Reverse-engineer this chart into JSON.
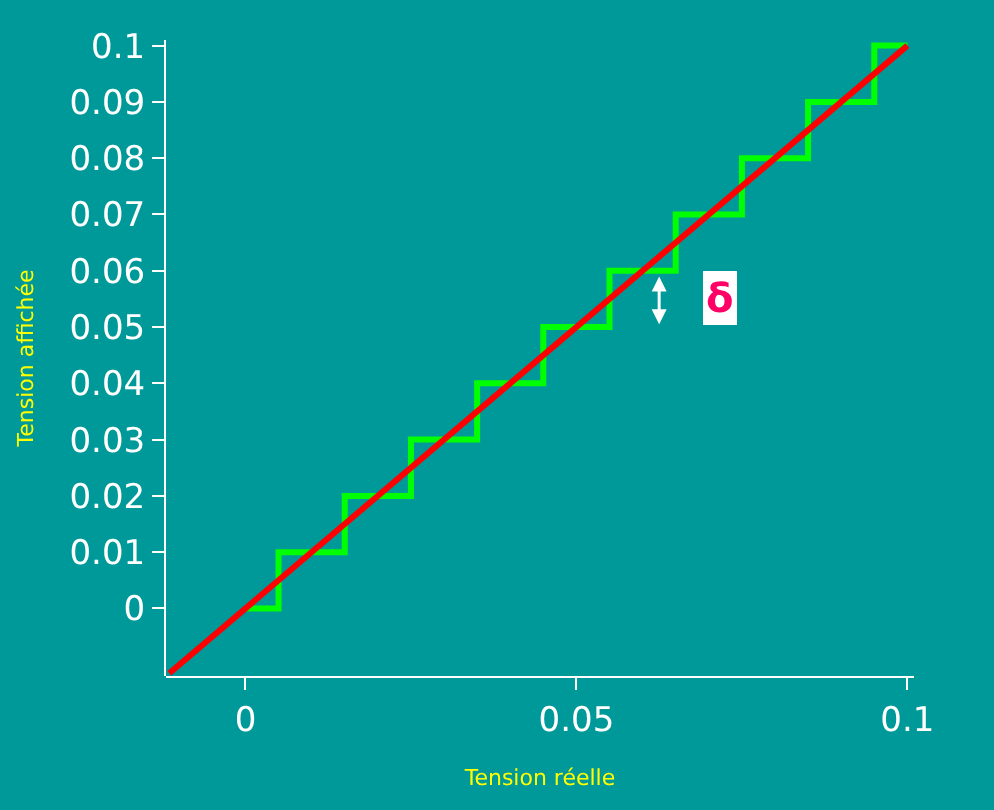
{
  "chart_data": {
    "type": "line",
    "xlabel": "Tension réelle",
    "ylabel": "Tension affichée",
    "xlim": [
      -0.012,
      0.101
    ],
    "xticks": [
      0,
      0.05,
      0.1
    ],
    "ylim": [
      -0.012,
      0.101
    ],
    "yticks": [
      0,
      0.01,
      0.02,
      0.03,
      0.04,
      0.05,
      0.06,
      0.07,
      0.08,
      0.09,
      0.1
    ],
    "grid": false,
    "marker": "none",
    "series": [
      {
        "type": "step",
        "color": "#00ff00",
        "x": [
          0,
          0.005,
          0.015,
          0.025,
          0.035,
          0.045,
          0.055,
          0.065,
          0.075,
          0.085,
          0.095,
          0.1
        ],
        "values": [
          0,
          0.01,
          0.02,
          0.03,
          0.04,
          0.05,
          0.06,
          0.07,
          0.08,
          0.09,
          0.1,
          0.1
        ]
      },
      {
        "type": "line",
        "color": "#ff0000",
        "x": [
          -0.0115,
          0.1
        ],
        "values": [
          -0.0115,
          0.1
        ]
      }
    ],
    "annotations": [
      "δ"
    ]
  }
}
